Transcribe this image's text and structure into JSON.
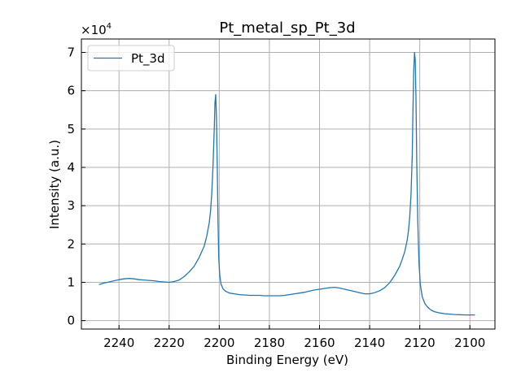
{
  "chart_data": {
    "type": "line",
    "title": "Pt_metal_sp_Pt_3d",
    "xlabel": "Binding Energy (eV)",
    "ylabel": "Intensity (a.u.)",
    "y_multiplier_label": "×10",
    "y_multiplier_exponent": "4",
    "xlim": [
      2255,
      2090
    ],
    "ylim": [
      -2200,
      73500
    ],
    "x_inverted": true,
    "grid": true,
    "legend_position": "top-left",
    "x_ticks": [
      2240,
      2220,
      2200,
      2180,
      2160,
      2140,
      2120,
      2100
    ],
    "x_tick_labels": [
      "2240",
      "2220",
      "2200",
      "2180",
      "2160",
      "2140",
      "2120",
      "2100"
    ],
    "y_ticks": [
      0,
      10000,
      20000,
      30000,
      40000,
      50000,
      60000,
      70000
    ],
    "y_tick_labels": [
      "0",
      "1",
      "2",
      "3",
      "4",
      "5",
      "6",
      "7"
    ],
    "series": [
      {
        "name": "Pt_3d",
        "color": "#1f77b4",
        "x": [
          2248,
          2246,
          2244,
          2242,
          2240,
          2238,
          2236,
          2234,
          2232,
          2230,
          2228,
          2226,
          2224,
          2222,
          2220,
          2218,
          2216,
          2214,
          2212,
          2210,
          2208,
          2206,
          2205,
          2204,
          2203.5,
          2203,
          2202.5,
          2202,
          2201.7,
          2201.4,
          2201.1,
          2200.8,
          2200.5,
          2200.2,
          2199.8,
          2199.3,
          2198.5,
          2197.5,
          2196,
          2194,
          2192,
          2190,
          2188,
          2186,
          2184,
          2182,
          2180,
          2178,
          2176,
          2174,
          2172,
          2170,
          2168,
          2166,
          2164,
          2162,
          2160,
          2158,
          2156,
          2154,
          2152,
          2150,
          2148,
          2146,
          2144,
          2142,
          2140,
          2138,
          2136,
          2134,
          2132,
          2130,
          2128,
          2127,
          2126,
          2125,
          2124.5,
          2124,
          2123.5,
          2123,
          2122.7,
          2122.4,
          2122.1,
          2121.8,
          2121.5,
          2121.2,
          2120.8,
          2120.3,
          2119.8,
          2119,
          2118,
          2117,
          2116,
          2115,
          2114,
          2112,
          2110,
          2108,
          2106,
          2104,
          2102,
          2100,
          2098
        ],
        "values": [
          9400,
          9800,
          10100,
          10400,
          10700,
          10900,
          11000,
          10900,
          10700,
          10600,
          10500,
          10400,
          10200,
          10100,
          10000,
          10200,
          10600,
          11500,
          12700,
          14200,
          16500,
          19500,
          22000,
          25500,
          28500,
          33000,
          40000,
          50000,
          57000,
          59000,
          53000,
          40000,
          26000,
          16500,
          12000,
          9500,
          8300,
          7700,
          7200,
          7000,
          6800,
          6700,
          6600,
          6600,
          6600,
          6500,
          6500,
          6500,
          6500,
          6600,
          6800,
          7000,
          7200,
          7400,
          7700,
          8000,
          8200,
          8400,
          8600,
          8700,
          8500,
          8200,
          7900,
          7600,
          7300,
          7000,
          7000,
          7300,
          7800,
          8600,
          9900,
          11800,
          14200,
          16000,
          18000,
          21000,
          23500,
          27000,
          33000,
          43000,
          55000,
          65000,
          70000,
          68000,
          58000,
          42000,
          26000,
          15000,
          9500,
          6200,
          4500,
          3600,
          3000,
          2600,
          2300,
          2000,
          1800,
          1700,
          1600,
          1550,
          1500,
          1500,
          1500
        ]
      }
    ]
  }
}
